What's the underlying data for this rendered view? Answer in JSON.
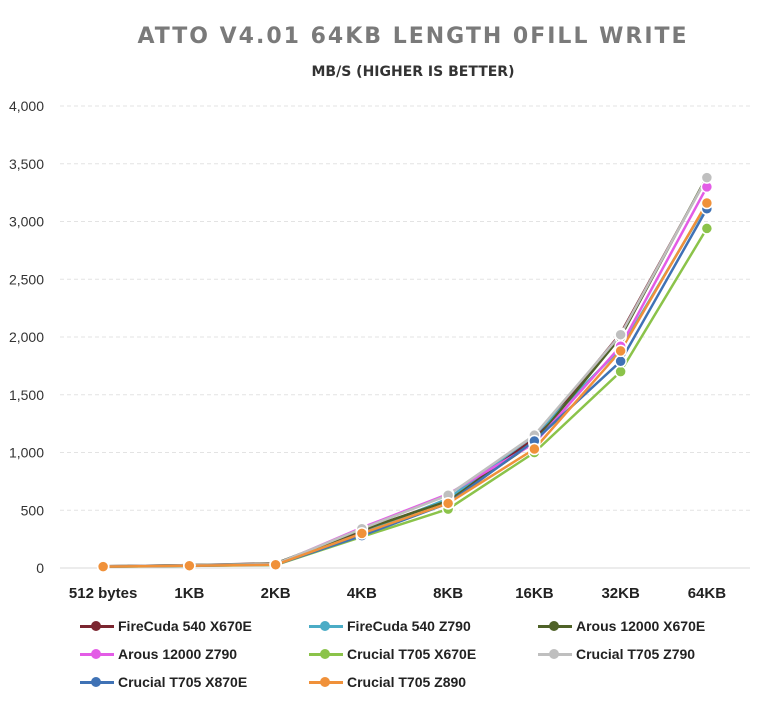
{
  "title": "ATTO V4.01 64KB LENGTH 0FILL WRITE",
  "subtitle": "MB/S (HIGHER IS BETTER)",
  "chart_data": {
    "type": "line",
    "categories": [
      "512 bytes",
      "1KB",
      "2KB",
      "4KB",
      "8KB",
      "16KB",
      "32KB",
      "64KB"
    ],
    "ylim": [
      0,
      4000
    ],
    "yticks": [
      0,
      500,
      1000,
      1500,
      2000,
      2500,
      3000,
      3500,
      4000
    ],
    "ytick_labels": [
      "0",
      "500",
      "1,000",
      "1,500",
      "2,000",
      "2,500",
      "3,000",
      "3,500",
      "4,000"
    ],
    "grid": true,
    "legend_position": "bottom",
    "series": [
      {
        "name": "FireCuda 540 X670E",
        "color": "#7b2630",
        "values": [
          15,
          25,
          40,
          320,
          590,
          1120,
          2030,
          3380
        ]
      },
      {
        "name": "FireCuda 540 Z790",
        "color": "#4bacc6",
        "values": [
          12,
          20,
          30,
          300,
          600,
          1150,
          1900,
          3150
        ]
      },
      {
        "name": "Arous 12000 X670E",
        "color": "#4f6228",
        "values": [
          15,
          25,
          38,
          330,
          580,
          1090,
          2000,
          3390
        ]
      },
      {
        "name": "Arous 12000 Z790",
        "color": "#e35ce6",
        "values": [
          12,
          22,
          30,
          350,
          640,
          1080,
          1920,
          3300
        ]
      },
      {
        "name": "Crucial T705 X670E",
        "color": "#8bc34a",
        "values": [
          10,
          18,
          25,
          270,
          510,
          1000,
          1700,
          2940
        ]
      },
      {
        "name": "Crucial T705 Z790",
        "color": "#bfbfbf",
        "values": [
          14,
          24,
          35,
          340,
          630,
          1150,
          2020,
          3380
        ]
      },
      {
        "name": "Crucial T705 X870E",
        "color": "#3f72b5",
        "values": [
          12,
          20,
          28,
          280,
          560,
          1100,
          1790,
          3110
        ]
      },
      {
        "name": "Crucial T705 Z890",
        "color": "#f0913a",
        "values": [
          12,
          20,
          28,
          300,
          560,
          1030,
          1880,
          3160
        ]
      }
    ]
  }
}
